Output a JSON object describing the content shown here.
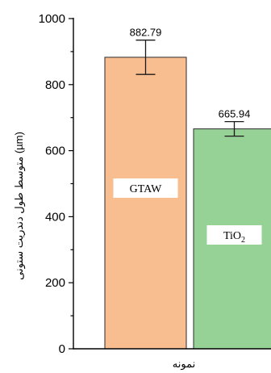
{
  "chart_data": {
    "type": "bar",
    "categories": [
      "GTAW",
      "TiO2"
    ],
    "values": [
      882.79,
      665.94
    ],
    "errors": [
      52,
      22
    ],
    "value_labels": [
      "882.79",
      "665.94"
    ],
    "colors": [
      "#f9be90",
      "#96d196"
    ],
    "ylim": [
      0,
      1000
    ],
    "yticks": [
      "0",
      "200",
      "400",
      "600",
      "800",
      "1000"
    ],
    "ylabel": "(µm) متوسط طول دندریت ستونی",
    "xlabel": "نمونه",
    "grid": false
  }
}
